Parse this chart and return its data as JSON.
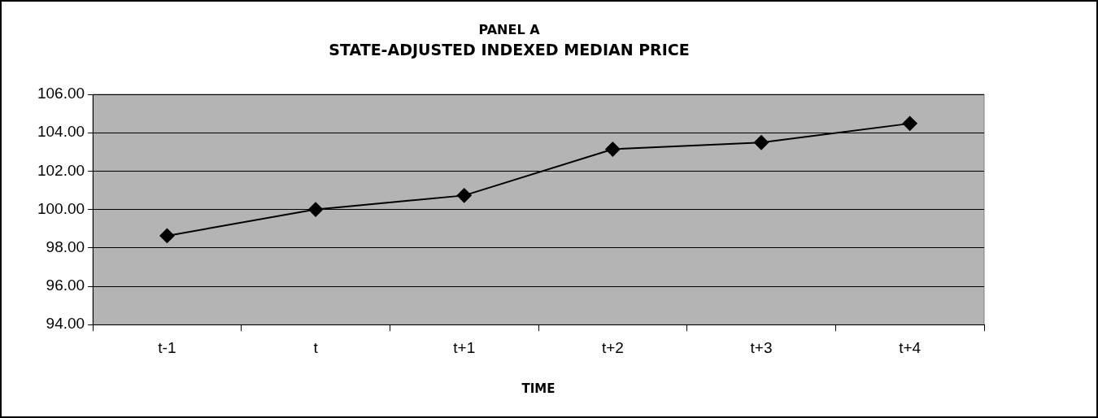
{
  "chart_data": {
    "type": "line",
    "title": "PANEL A",
    "subtitle": "STATE-ADJUSTED INDEXED MEDIAN PRICE",
    "xlabel": "TIME",
    "categories": [
      "t-1",
      "t",
      "t+1",
      "t+2",
      "t+3",
      "t+4"
    ],
    "series": [
      {
        "color": "#000000",
        "values": [
          98.63,
          100.0,
          100.73,
          103.14,
          103.49,
          104.48
        ]
      }
    ],
    "ylim": [
      94,
      106
    ],
    "yticks": [
      {
        "value": 94,
        "label": "94.00"
      },
      {
        "value": 96,
        "label": "96.00"
      },
      {
        "value": 98,
        "label": "98.00"
      },
      {
        "value": 100,
        "label": "100.00"
      },
      {
        "value": 102,
        "label": "102.00"
      },
      {
        "value": 104,
        "label": "104.00"
      },
      {
        "value": 106,
        "label": "106.00"
      }
    ],
    "grid": "y",
    "legend": false,
    "marker": "diamond",
    "line_style": "solid"
  }
}
